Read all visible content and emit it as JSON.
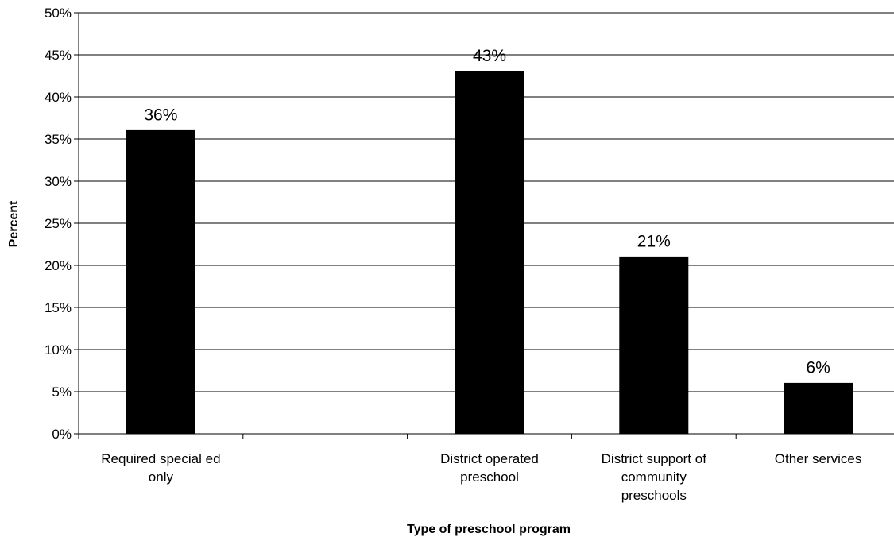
{
  "chart_data": {
    "type": "bar",
    "title": "",
    "xlabel": "Type of preschool program",
    "ylabel": "Percent",
    "categories": [
      [
        "Required special ed",
        "only"
      ],
      [],
      [
        "District operated",
        "preschool"
      ],
      [
        "District support of",
        "community",
        "preschools"
      ],
      [
        "Other services"
      ]
    ],
    "values": [
      36,
      null,
      43,
      21,
      6
    ],
    "data_labels": [
      "36%",
      "",
      "43%",
      "21%",
      "6%"
    ],
    "ylim": [
      0,
      50
    ],
    "yticks": [
      0,
      5,
      10,
      15,
      20,
      25,
      30,
      35,
      40,
      45,
      50
    ],
    "ytick_labels": [
      "0%",
      "5%",
      "10%",
      "15%",
      "20%",
      "25%",
      "30%",
      "35%",
      "40%",
      "45%",
      "50%"
    ],
    "grid": true,
    "legend": "none",
    "bar_color": "#000000",
    "grid_color": "#000000"
  }
}
